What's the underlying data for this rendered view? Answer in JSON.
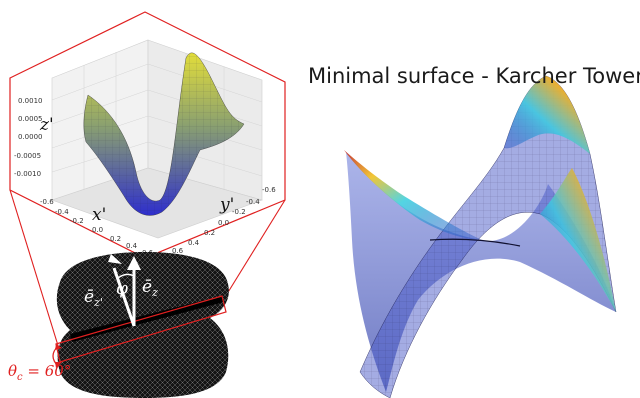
{
  "title": "Minimal surface - Karcher Tower",
  "inset_plot": {
    "z_label": "z'",
    "x_label": "x'",
    "y_label": "y'",
    "z_ticks": [
      "0.0010",
      "0.0005",
      "0.0000",
      "-0.0005",
      "-0.0010"
    ],
    "x_ticks": [
      "-0.6",
      "-0.4",
      "-0.2",
      "0.0",
      "0.2",
      "0.4",
      "0.6"
    ],
    "y_ticks": [
      "-0.6",
      "-0.4",
      "-0.2",
      "0.0",
      "0.2",
      "0.4",
      "0.6"
    ]
  },
  "annotations": {
    "vec_ez_prime": "ē",
    "vec_ez_prime_sub": "z'",
    "vec_ez": "ē",
    "vec_ez_sub": "z",
    "phi": "φ",
    "theta_c": "θ",
    "theta_c_sub": "c",
    "theta_c_value": " = 60°"
  },
  "colors": {
    "outline": "#e02020",
    "inset_surface_high": "#d8d040",
    "inset_surface_low": "#3030c8",
    "surface_colormap": "jet"
  }
}
